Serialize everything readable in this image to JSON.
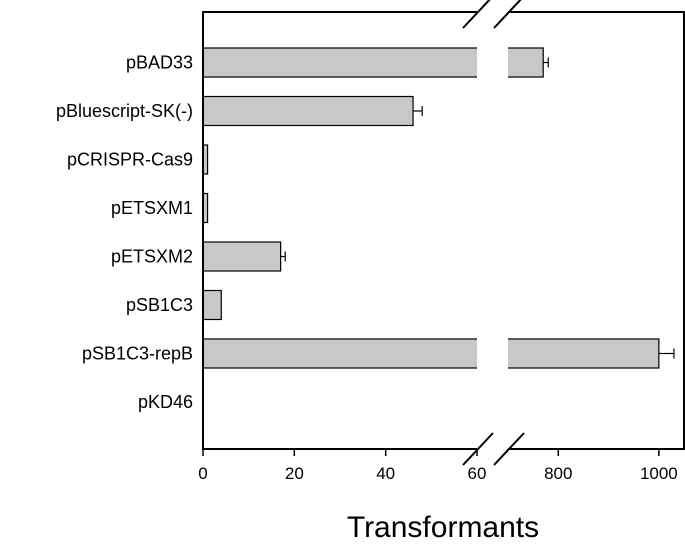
{
  "chart_data": {
    "type": "bar",
    "orientation": "horizontal",
    "xlabel": "Transformants",
    "ylabel": "",
    "broken_axis": true,
    "segments": [
      {
        "xlim": [
          0,
          60
        ],
        "ticks": [
          "0",
          "20",
          "40",
          "60"
        ],
        "tick_values": [
          0,
          20,
          40,
          60
        ]
      },
      {
        "xlim": [
          700,
          1050
        ],
        "ticks": [
          "800",
          "1000"
        ],
        "tick_values": [
          800,
          1000
        ]
      }
    ],
    "categories": [
      "pBAD33",
      "pBluescript-SK(-)",
      "pCRISPR-Cas9",
      "pETSXM1",
      "pETSXM2",
      "pSB1C3",
      "pSB1C3-repB",
      "pKD46"
    ],
    "values": [
      770,
      46,
      1,
      1,
      17,
      4,
      1000,
      0
    ],
    "errors": [
      10,
      2,
      0,
      0,
      1,
      0,
      30,
      0
    ],
    "bar_color": "#c8c8c8",
    "grid": false,
    "legend": "none"
  }
}
